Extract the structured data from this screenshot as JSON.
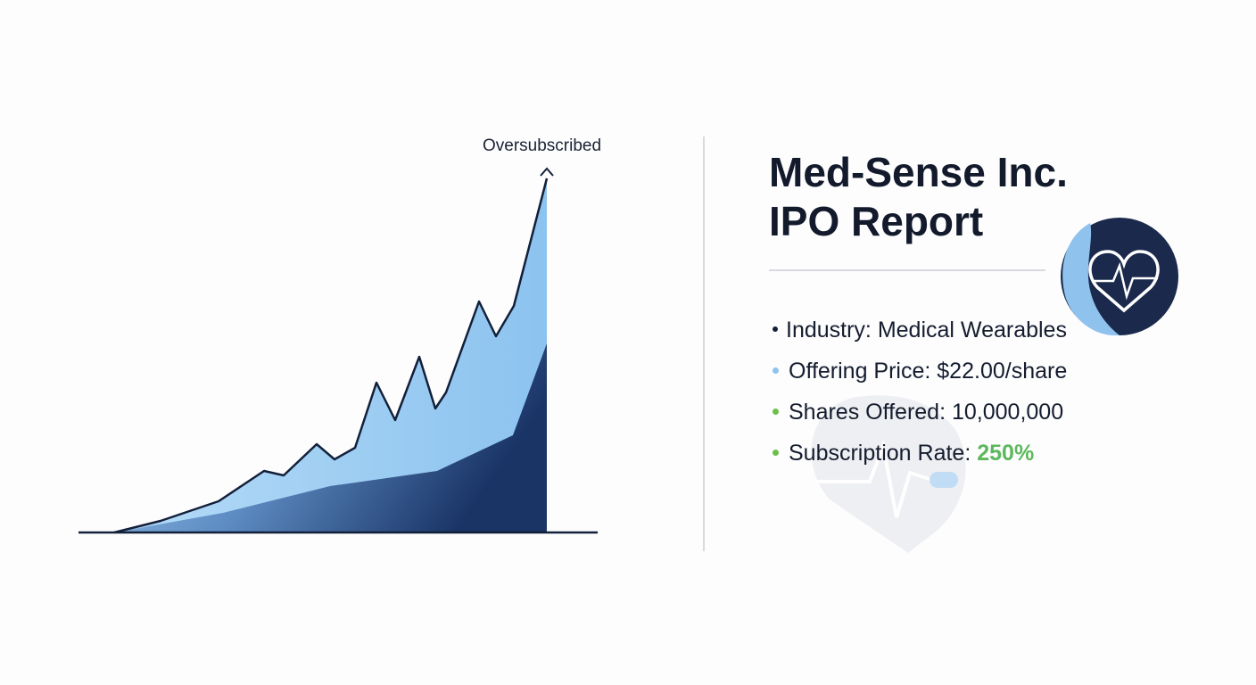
{
  "annotation": "Oversubscribed",
  "title_lines": [
    "Med-Sense Inc.",
    "IPO Report"
  ],
  "details": [
    {
      "label": "Industry:",
      "value": "Medical Wearables"
    },
    {
      "label": "Offering Price:",
      "value": "$22.00/share"
    },
    {
      "label": "Shares Offered:",
      "value": "10,000,000"
    },
    {
      "label": "Subscription Rate:",
      "value": "250%"
    }
  ]
}
